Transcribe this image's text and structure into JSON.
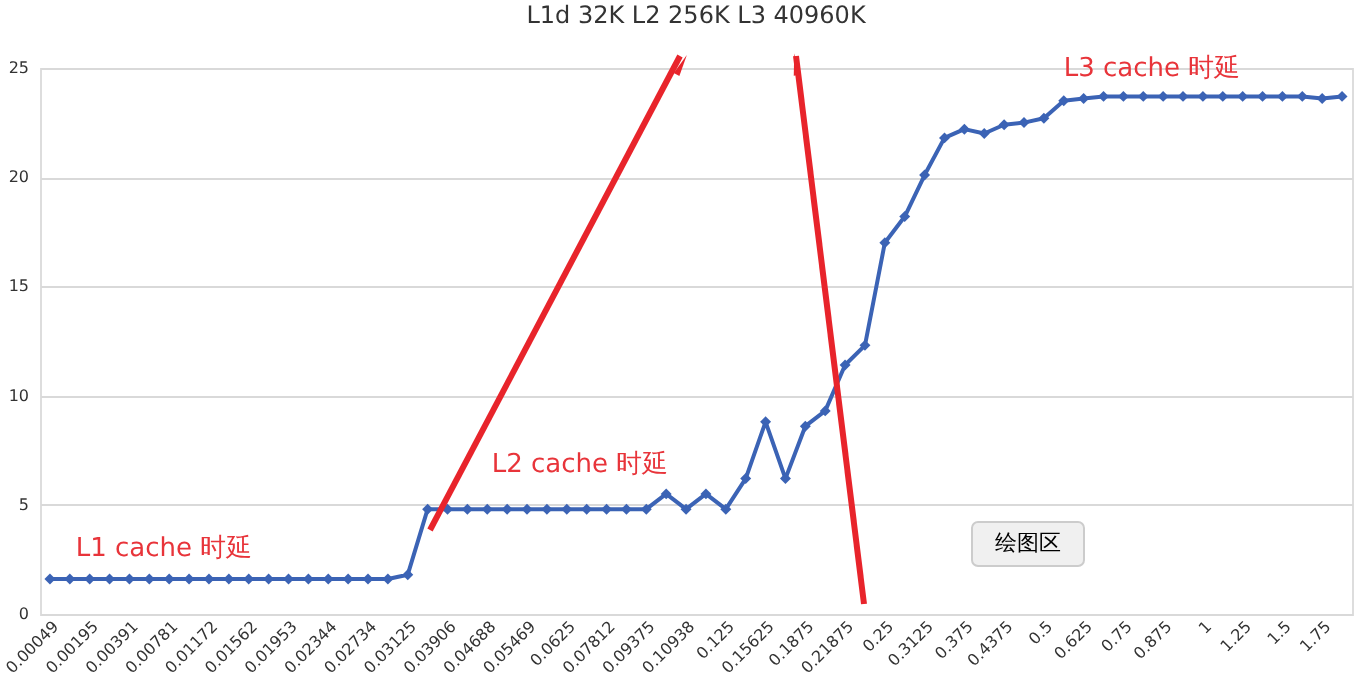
{
  "chart_data": {
    "type": "line",
    "title": "L1d 32K  L2 256K   L3 40960K",
    "categories": [
      "0.00049",
      null,
      "0.00195",
      null,
      "0.00391",
      null,
      "0.00781",
      null,
      "0.01172",
      null,
      "0.01562",
      null,
      "0.01953",
      null,
      "0.02344",
      null,
      "0.02734",
      null,
      "0.03125",
      null,
      "0.03906",
      null,
      "0.04688",
      null,
      "0.05469",
      null,
      "0.0625",
      null,
      "0.07812",
      null,
      "0.09375",
      null,
      "0.10938",
      null,
      "0.125",
      null,
      "0.15625",
      null,
      "0.1875",
      null,
      "0.21875",
      null,
      "0.25",
      null,
      "0.3125",
      null,
      "0.375",
      null,
      "0.4375",
      null,
      "0.5",
      null,
      "0.625",
      null,
      "0.75",
      null,
      "0.875",
      null,
      "1",
      null,
      "1.25",
      null,
      "1.5",
      null,
      "1.75",
      null
    ],
    "series": [
      {
        "color": "#3b63b5",
        "values": [
          1.6,
          1.6,
          1.6,
          1.6,
          1.6,
          1.6,
          1.6,
          1.6,
          1.6,
          1.6,
          1.6,
          1.6,
          1.6,
          1.6,
          1.6,
          1.6,
          1.6,
          1.6,
          1.8,
          4.8,
          4.8,
          4.8,
          4.8,
          4.8,
          4.8,
          4.8,
          4.8,
          4.8,
          4.8,
          4.8,
          4.8,
          5.5,
          4.8,
          5.5,
          4.8,
          6.2,
          8.8,
          6.2,
          8.6,
          9.3,
          11.4,
          12.3,
          17.0,
          18.2,
          20.1,
          21.8,
          22.2,
          22.0,
          22.4,
          22.5,
          22.7,
          23.5,
          23.6,
          23.7,
          23.7,
          23.7,
          23.7,
          23.7,
          23.7,
          23.7,
          23.7,
          23.7,
          23.7,
          23.7,
          23.6,
          23.7
        ]
      }
    ],
    "ylim": [
      0,
      25
    ],
    "yticks": [
      0,
      5,
      10,
      15,
      20,
      25
    ],
    "grid": "y",
    "marker": "diamond",
    "line_style": "solid",
    "annotations": [
      "L1 cache 时延",
      "L2 cache 时延",
      "L3 cache 时延",
      "绘图区"
    ]
  }
}
